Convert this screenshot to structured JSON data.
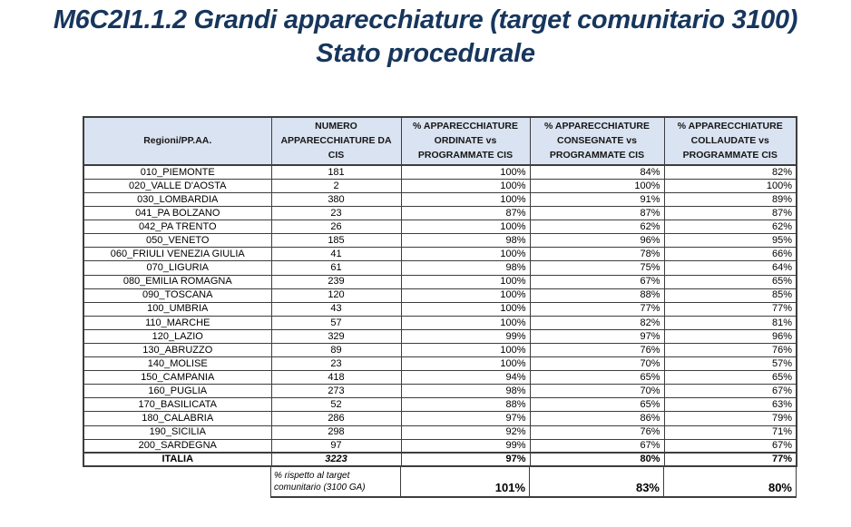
{
  "title": {
    "line1": "M6C2I1.1.2 Grandi apparecchiature (target comunitario 3100)",
    "line2": "Stato procedurale"
  },
  "colors": {
    "title_text": "#17365d",
    "header_background": "#dae3f1",
    "table_border": "#3d3d3d"
  },
  "table": {
    "columns": [
      "Regioni/PP.AA.",
      "NUMERO APPARECCHIATURE DA CIS",
      "% APPARECCHIATURE ORDINATE vs PROGRAMMATE CIS",
      "% APPARECCHIATURE CONSEGNATE vs PROGRAMMATE CIS",
      "% APPARECCHIATURE COLLAUDATE vs PROGRAMMATE CIS"
    ],
    "rows": [
      {
        "region": "010_PIEMONTE",
        "numero": "181",
        "ordinate": "100%",
        "consegnate": "84%",
        "collaudate": "82%"
      },
      {
        "region": "020_VALLE D'AOSTA",
        "numero": "2",
        "ordinate": "100%",
        "consegnate": "100%",
        "collaudate": "100%"
      },
      {
        "region": "030_LOMBARDIA",
        "numero": "380",
        "ordinate": "100%",
        "consegnate": "91%",
        "collaudate": "89%"
      },
      {
        "region": "041_PA BOLZANO",
        "numero": "23",
        "ordinate": "87%",
        "consegnate": "87%",
        "collaudate": "87%"
      },
      {
        "region": "042_PA TRENTO",
        "numero": "26",
        "ordinate": "100%",
        "consegnate": "62%",
        "collaudate": "62%"
      },
      {
        "region": "050_VENETO",
        "numero": "185",
        "ordinate": "98%",
        "consegnate": "96%",
        "collaudate": "95%"
      },
      {
        "region": "060_FRIULI VENEZIA GIULIA",
        "numero": "41",
        "ordinate": "100%",
        "consegnate": "78%",
        "collaudate": "66%"
      },
      {
        "region": "070_LIGURIA",
        "numero": "61",
        "ordinate": "98%",
        "consegnate": "75%",
        "collaudate": "64%"
      },
      {
        "region": "080_EMILIA ROMAGNA",
        "numero": "239",
        "ordinate": "100%",
        "consegnate": "67%",
        "collaudate": "65%"
      },
      {
        "region": "090_TOSCANA",
        "numero": "120",
        "ordinate": "100%",
        "consegnate": "88%",
        "collaudate": "85%"
      },
      {
        "region": "100_UMBRIA",
        "numero": "43",
        "ordinate": "100%",
        "consegnate": "77%",
        "collaudate": "77%"
      },
      {
        "region": "110_MARCHE",
        "numero": "57",
        "ordinate": "100%",
        "consegnate": "82%",
        "collaudate": "81%"
      },
      {
        "region": "120_LAZIO",
        "numero": "329",
        "ordinate": "99%",
        "consegnate": "97%",
        "collaudate": "96%"
      },
      {
        "region": "130_ABRUZZO",
        "numero": "89",
        "ordinate": "100%",
        "consegnate": "76%",
        "collaudate": "76%"
      },
      {
        "region": "140_MOLISE",
        "numero": "23",
        "ordinate": "100%",
        "consegnate": "70%",
        "collaudate": "57%"
      },
      {
        "region": "150_CAMPANIA",
        "numero": "418",
        "ordinate": "94%",
        "consegnate": "65%",
        "collaudate": "65%"
      },
      {
        "region": "160_PUGLIA",
        "numero": "273",
        "ordinate": "98%",
        "consegnate": "70%",
        "collaudate": "67%"
      },
      {
        "region": "170_BASILICATA",
        "numero": "52",
        "ordinate": "88%",
        "consegnate": "65%",
        "collaudate": "63%"
      },
      {
        "region": "180_CALABRIA",
        "numero": "286",
        "ordinate": "97%",
        "consegnate": "86%",
        "collaudate": "79%"
      },
      {
        "region": "190_SICILIA",
        "numero": "298",
        "ordinate": "92%",
        "consegnate": "76%",
        "collaudate": "71%"
      },
      {
        "region": "200_SARDEGNA",
        "numero": "97",
        "ordinate": "99%",
        "consegnate": "67%",
        "collaudate": "67%"
      }
    ],
    "total_row": {
      "label": "ITALIA",
      "numero": "3223",
      "ordinate": "97%",
      "consegnate": "80%",
      "collaudate": "77%"
    },
    "target_row": {
      "label": "% rispetto al target comunitario (3100 GA)",
      "ordinate": "101%",
      "consegnate": "83%",
      "collaudate": "80%"
    }
  }
}
